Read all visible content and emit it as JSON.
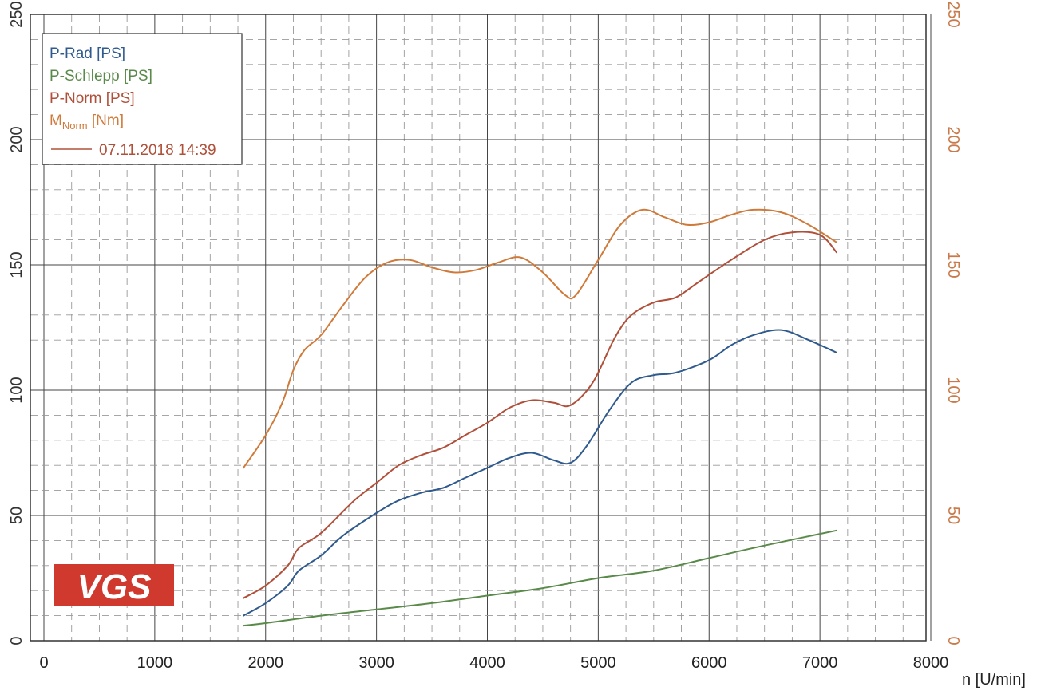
{
  "chart_data": {
    "type": "line",
    "xlabel": "n [U/min]",
    "xlim": [
      0,
      8000
    ],
    "x_ticks": [
      0,
      1000,
      2000,
      3000,
      4000,
      5000,
      6000,
      7000,
      8000
    ],
    "ylim_left": [
      0,
      250
    ],
    "y_ticks_left": [
      0,
      50,
      100,
      150,
      200,
      250
    ],
    "ylim_right": [
      0,
      250
    ],
    "y_ticks_right": [
      0,
      50,
      100,
      150,
      200,
      250
    ],
    "grid": true,
    "legend_position": "top-left",
    "legend": {
      "date_entry": "07.11.2018 14:39"
    },
    "series": [
      {
        "name": "P-Rad [PS]",
        "label_main": "P-Rad [PS]",
        "color": "#2f5a8e",
        "axis": "left",
        "points": [
          [
            1800,
            10
          ],
          [
            2000,
            15
          ],
          [
            2200,
            22
          ],
          [
            2300,
            28
          ],
          [
            2500,
            34
          ],
          [
            2700,
            42
          ],
          [
            3000,
            51
          ],
          [
            3200,
            56
          ],
          [
            3400,
            59
          ],
          [
            3600,
            61
          ],
          [
            3800,
            65
          ],
          [
            4000,
            69
          ],
          [
            4200,
            73
          ],
          [
            4400,
            75
          ],
          [
            4600,
            72
          ],
          [
            4750,
            71
          ],
          [
            4900,
            78
          ],
          [
            5100,
            92
          ],
          [
            5300,
            103
          ],
          [
            5500,
            106
          ],
          [
            5700,
            107
          ],
          [
            6000,
            112
          ],
          [
            6200,
            118
          ],
          [
            6400,
            122
          ],
          [
            6650,
            124
          ],
          [
            6900,
            120
          ],
          [
            7150,
            115
          ]
        ]
      },
      {
        "name": "P-Schlepp [PS]",
        "label_main": "P-Schlepp [PS]",
        "color": "#5a8a4a",
        "axis": "left",
        "points": [
          [
            1800,
            6
          ],
          [
            2000,
            7
          ],
          [
            2500,
            10
          ],
          [
            3000,
            12.5
          ],
          [
            3500,
            15
          ],
          [
            4000,
            18
          ],
          [
            4500,
            21
          ],
          [
            5000,
            25
          ],
          [
            5500,
            28
          ],
          [
            6000,
            33
          ],
          [
            6500,
            38
          ],
          [
            7150,
            44
          ]
        ]
      },
      {
        "name": "P-Norm [PS]",
        "label_main": "P-Norm [PS]",
        "color": "#b0503a",
        "axis": "left",
        "points": [
          [
            1800,
            17
          ],
          [
            2000,
            22
          ],
          [
            2200,
            30
          ],
          [
            2300,
            37
          ],
          [
            2500,
            43
          ],
          [
            2800,
            56
          ],
          [
            3000,
            63
          ],
          [
            3200,
            70
          ],
          [
            3400,
            74
          ],
          [
            3600,
            77
          ],
          [
            3800,
            82
          ],
          [
            4000,
            87
          ],
          [
            4200,
            93
          ],
          [
            4400,
            96
          ],
          [
            4600,
            95
          ],
          [
            4750,
            94
          ],
          [
            4950,
            103
          ],
          [
            5150,
            121
          ],
          [
            5300,
            130
          ],
          [
            5500,
            135
          ],
          [
            5700,
            137
          ],
          [
            5900,
            143
          ],
          [
            6200,
            152
          ],
          [
            6500,
            160
          ],
          [
            6750,
            163
          ],
          [
            7000,
            162
          ],
          [
            7150,
            155
          ]
        ]
      },
      {
        "name": "M_Norm [Nm]",
        "label_main": "M",
        "label_sub": "Norm",
        "label_unit": " [Nm]",
        "color": "#d07a3a",
        "axis": "right",
        "points": [
          [
            1800,
            69
          ],
          [
            2000,
            82
          ],
          [
            2150,
            95
          ],
          [
            2250,
            108
          ],
          [
            2350,
            116
          ],
          [
            2500,
            122
          ],
          [
            2700,
            134
          ],
          [
            2900,
            145
          ],
          [
            3100,
            151
          ],
          [
            3300,
            152
          ],
          [
            3500,
            149
          ],
          [
            3700,
            147
          ],
          [
            3900,
            148
          ],
          [
            4100,
            151
          ],
          [
            4300,
            153
          ],
          [
            4500,
            147
          ],
          [
            4700,
            138
          ],
          [
            4800,
            138
          ],
          [
            5000,
            152
          ],
          [
            5200,
            166
          ],
          [
            5400,
            172
          ],
          [
            5600,
            169
          ],
          [
            5800,
            166
          ],
          [
            6000,
            167
          ],
          [
            6200,
            170
          ],
          [
            6400,
            172
          ],
          [
            6650,
            171
          ],
          [
            6900,
            166
          ],
          [
            7150,
            159
          ]
        ]
      }
    ]
  },
  "logo": {
    "text": "VGS",
    "color": "#d03a2e"
  }
}
